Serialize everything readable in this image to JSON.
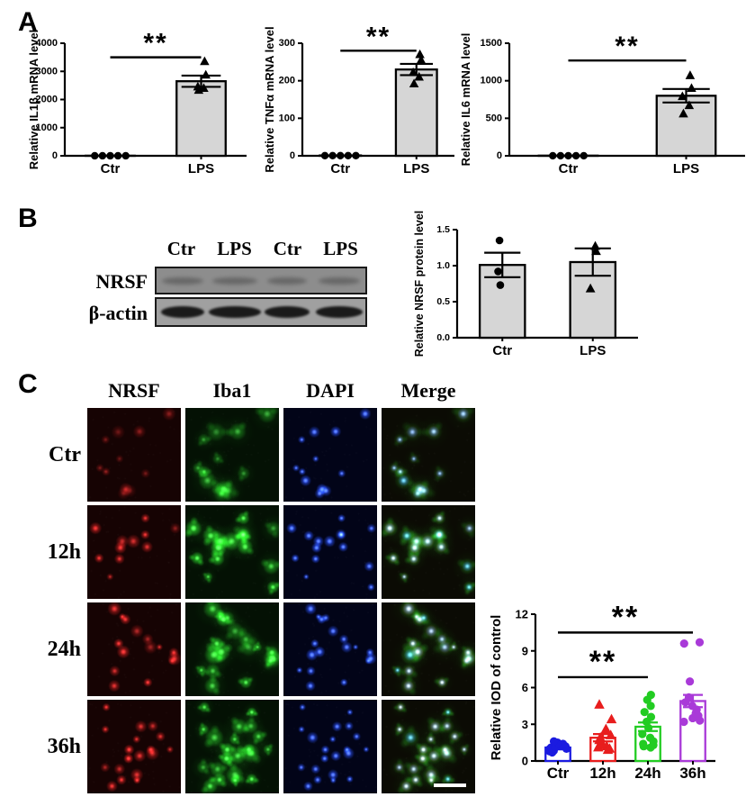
{
  "figure": {
    "panel_a": {
      "label": "A"
    },
    "panel_b": {
      "label": "B",
      "blot": {
        "lane_labels": [
          "Ctr",
          "LPS",
          "Ctr",
          "LPS"
        ],
        "row_labels": [
          "NRSF",
          "β-actin"
        ]
      }
    },
    "panel_c": {
      "label": "C",
      "column_headers": [
        "NRSF",
        "Iba1",
        "DAPI",
        "Merge"
      ],
      "row_labels": [
        "Ctr",
        "12h",
        "24h",
        "36h"
      ],
      "channel_colors": {
        "NRSF": "#e02424",
        "Iba1": "#2ad42a",
        "DAPI": "#2a50e8"
      }
    }
  },
  "chart_data": [
    {
      "id": "il1b",
      "type": "bar",
      "panel": "A",
      "title": "",
      "xlabel": "",
      "ylabel": "Relative IL1β mRNA level",
      "categories": [
        "Ctr",
        "LPS"
      ],
      "values": [
        3,
        2650
      ],
      "errors": [
        0,
        200
      ],
      "points": [
        [
          1,
          1,
          1,
          1,
          1
        ],
        [
          3350,
          2870,
          2450,
          2400,
          2330
        ]
      ],
      "markers": [
        "circle",
        "triangle"
      ],
      "bar_fill": "#d6d6d6",
      "bar_stroke": "#000000",
      "point_color": "#000000",
      "ylim": [
        0,
        4000
      ],
      "yticks": [
        0,
        1000,
        2000,
        3000,
        4000
      ],
      "ytick_decimals": 0,
      "significance": [
        {
          "from": 0,
          "to": 1,
          "y": 3500,
          "label": "**"
        }
      ]
    },
    {
      "id": "tnfa",
      "type": "bar",
      "panel": "A",
      "title": "",
      "xlabel": "",
      "ylabel": "Relative TNFα mRNA level",
      "categories": [
        "Ctr",
        "LPS"
      ],
      "values": [
        1,
        230
      ],
      "errors": [
        0,
        15
      ],
      "points": [
        [
          0.5,
          0.5,
          0.5,
          0.5,
          0.5
        ],
        [
          270,
          255,
          222,
          210,
          192
        ]
      ],
      "markers": [
        "circle",
        "triangle"
      ],
      "bar_fill": "#d6d6d6",
      "bar_stroke": "#000000",
      "point_color": "#000000",
      "ylim": [
        0,
        300
      ],
      "yticks": [
        0,
        100,
        200,
        300
      ],
      "ytick_decimals": 0,
      "significance": [
        {
          "from": 0,
          "to": 1,
          "y": 280,
          "label": "**"
        }
      ]
    },
    {
      "id": "il6",
      "type": "bar",
      "panel": "A",
      "title": "",
      "xlabel": "",
      "ylabel": "Relative IL6 mRNA level",
      "categories": [
        "Ctr",
        "LPS"
      ],
      "values": [
        2,
        800
      ],
      "errors": [
        0,
        90
      ],
      "points": [
        [
          1,
          1,
          1,
          1,
          1
        ],
        [
          1070,
          900,
          790,
          670,
          560
        ]
      ],
      "markers": [
        "circle",
        "triangle"
      ],
      "bar_fill": "#d6d6d6",
      "bar_stroke": "#000000",
      "point_color": "#000000",
      "ylim": [
        0,
        1500
      ],
      "yticks": [
        0,
        500,
        1000,
        1500
      ],
      "ytick_decimals": 0,
      "significance": [
        {
          "from": 0,
          "to": 1,
          "y": 1270,
          "label": "**"
        }
      ]
    },
    {
      "id": "nrsf_protein",
      "type": "bar",
      "panel": "B",
      "title": "",
      "xlabel": "",
      "ylabel": "Relative NRSF protein level",
      "categories": [
        "Ctr",
        "LPS"
      ],
      "values": [
        1.01,
        1.05
      ],
      "errors": [
        0.17,
        0.19
      ],
      "points": [
        [
          1.35,
          0.92,
          0.73
        ],
        [
          1.27,
          1.2,
          0.68
        ]
      ],
      "markers": [
        "circle",
        "triangle"
      ],
      "bar_fill": "#d6d6d6",
      "bar_stroke": "#000000",
      "point_color": "#000000",
      "ylim": [
        0,
        1.5
      ],
      "yticks": [
        0,
        0.5,
        1,
        1.5
      ],
      "ytick_decimals": 1,
      "significance": []
    },
    {
      "id": "iod",
      "type": "bar",
      "panel": "C",
      "title": "",
      "xlabel": "",
      "ylabel": "Relative IOD of control",
      "categories": [
        "Ctr",
        "12h",
        "24h",
        "36h"
      ],
      "values": [
        1.1,
        1.9,
        2.8,
        4.9
      ],
      "errors": [
        0.15,
        0.3,
        0.35,
        0.5
      ],
      "points": [
        [
          0.7,
          0.8,
          0.85,
          0.9,
          1.0,
          1.0,
          1.1,
          1.15,
          1.2,
          1.3,
          1.4,
          1.5,
          1.6
        ],
        [
          0.9,
          1.0,
          1.1,
          1.2,
          1.3,
          1.4,
          1.5,
          1.7,
          1.9,
          2.1,
          2.6,
          3.4,
          4.6
        ],
        [
          1.1,
          1.2,
          1.3,
          1.4,
          1.6,
          1.9,
          2.2,
          2.7,
          3.2,
          3.6,
          4.0,
          4.5,
          5.0,
          5.4
        ],
        [
          3.2,
          3.3,
          3.5,
          3.7,
          3.9,
          4.2,
          4.5,
          4.8,
          5.2,
          6.5,
          9.6,
          9.7
        ]
      ],
      "markers": [
        "circle",
        "triangle",
        "circle",
        "circle"
      ],
      "group_colors": [
        "#1b1be0",
        "#e81d1d",
        "#22cc22",
        "#a93ad8"
      ],
      "bar_fill": "#ffffff",
      "bar_stroke": "#000000",
      "point_color": "#000000",
      "ylim": [
        0,
        12
      ],
      "yticks": [
        0,
        3,
        6,
        9,
        12
      ],
      "ytick_decimals": 0,
      "significance": [
        {
          "from": 0,
          "to": 2,
          "y": 6.85,
          "label": "**"
        },
        {
          "from": 0,
          "to": 3,
          "y": 10.5,
          "label": "**"
        }
      ]
    }
  ]
}
